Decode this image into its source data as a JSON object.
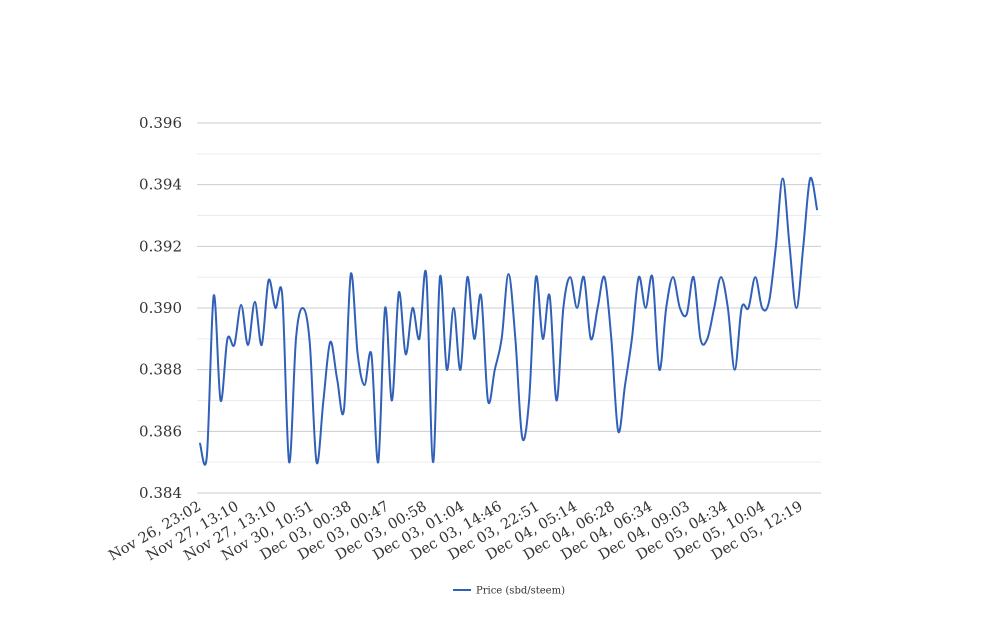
{
  "chart_data": {
    "type": "line",
    "title": "",
    "xlabel": "",
    "ylabel": "",
    "ylim": [
      0.384,
      0.396
    ],
    "yticks": [
      "0.384",
      "0.386",
      "0.388",
      "0.390",
      "0.392",
      "0.394",
      "0.396"
    ],
    "xticks": [
      "Nov 26, 23:02",
      "Nov 27, 13:10",
      "Nov 27, 13:10",
      "Nov 30, 10:51",
      "Dec 03, 00:38",
      "Dec 03, 00:47",
      "Dec 03, 00:58",
      "Dec 03, 01:04",
      "Dec 03, 14:46",
      "Dec 03, 22:51",
      "Dec 04, 05:14",
      "Dec 04, 06:28",
      "Dec 04, 06:34",
      "Dec 04, 09:03",
      "Dec 05, 04:34",
      "Dec 05, 10:04",
      "Dec 05, 12:19"
    ],
    "grid": true,
    "legend_position": "bottom",
    "series": [
      {
        "name": "Price (sbd/steem)",
        "color": "#3060b8",
        "values": [
          0.3856,
          0.3852,
          0.3904,
          0.387,
          0.389,
          0.3888,
          0.3901,
          0.3888,
          0.3902,
          0.3888,
          0.3909,
          0.39,
          0.3904,
          0.385,
          0.389,
          0.39,
          0.3889,
          0.385,
          0.387,
          0.3889,
          0.3877,
          0.3867,
          0.3911,
          0.3885,
          0.3875,
          0.3885,
          0.385,
          0.39,
          0.387,
          0.3905,
          0.3885,
          0.39,
          0.389,
          0.3911,
          0.385,
          0.391,
          0.388,
          0.39,
          0.388,
          0.391,
          0.389,
          0.3904,
          0.387,
          0.388,
          0.389,
          0.3911,
          0.389,
          0.3858,
          0.387,
          0.391,
          0.389,
          0.3904,
          0.387,
          0.39,
          0.391,
          0.39,
          0.391,
          0.389,
          0.39,
          0.391,
          0.389,
          0.386,
          0.3875,
          0.389,
          0.391,
          0.39,
          0.391,
          0.388,
          0.39,
          0.391,
          0.39,
          0.3898,
          0.391,
          0.389,
          0.389,
          0.39,
          0.391,
          0.39,
          0.388,
          0.39,
          0.39,
          0.391,
          0.39,
          0.3902,
          0.392,
          0.3942,
          0.392,
          0.39,
          0.392,
          0.3942,
          0.3932
        ]
      }
    ]
  }
}
